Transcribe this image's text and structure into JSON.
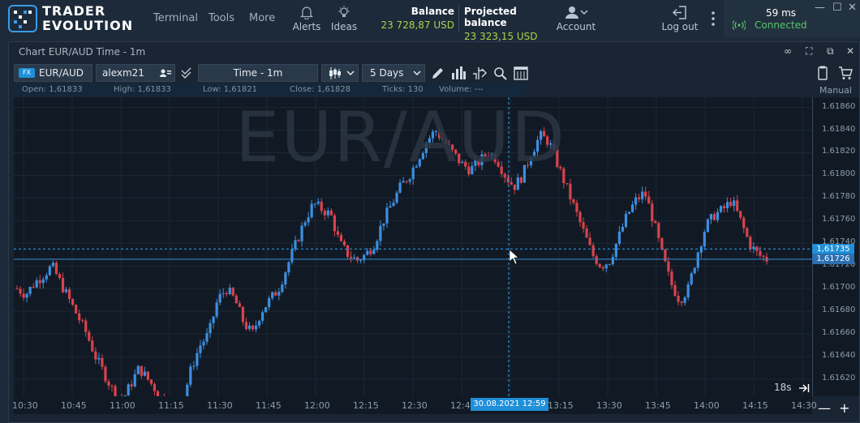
{
  "app": {
    "logo_line1": "TRADER",
    "logo_line2": "EVOLUTION"
  },
  "nav": [
    "Terminal",
    "Tools",
    "More"
  ],
  "toolbar_icons": {
    "alerts_label": "Alerts",
    "ideas_label": "Ideas",
    "account_label": "Account",
    "logout_label": "Log out"
  },
  "balances": {
    "balance_label": "Balance",
    "balance_value": "23 728,87 USD",
    "projected_label": "Projected balance",
    "projected_value": "23 323,15 USD"
  },
  "connection": {
    "ping": "59 ms",
    "status": "Connected"
  },
  "panel": {
    "title": "Chart EUR/AUD Time - 1m",
    "symbol_badge": "FX",
    "symbol": "EUR/AUD",
    "account": "alexm21",
    "time_mode": "Time - 1m",
    "period": "5 Days",
    "manual_label": "Manual"
  },
  "info_bar": {
    "open": "Open:  1,61833",
    "high": "High:  1,61833",
    "low": "Low:  1,61821",
    "close": "Close:  1,61828",
    "ticks": "Ticks:  130",
    "volume": "Volume:  ---"
  },
  "watermark": "EUR/AUD",
  "price_labels": {
    "crosshair_price": "1,61735",
    "current_price": "1,61726",
    "crosshair_time": "30.08.2021 12:59"
  },
  "countdown": "18s",
  "colors": {
    "up": "#3d8ee0",
    "down": "#d8434d",
    "accent": "#1f8fd9",
    "balance": "#a8d34a",
    "connected": "#57c46a"
  },
  "chart_data": {
    "type": "candlestick",
    "y_ticks": [
      "1.61860",
      "1.61840",
      "1.61820",
      "1.61800",
      "1.61780",
      "1.61760",
      "1.61740",
      "1.61720",
      "1.61700",
      "1.61680",
      "1.61660",
      "1.61640",
      "1.61620"
    ],
    "x_ticks": [
      "10:30",
      "10:45",
      "11:00",
      "11:15",
      "11:30",
      "11:45",
      "12:00",
      "12:15",
      "12:30",
      "12:45",
      "13:00",
      "13:15",
      "13:30",
      "13:45",
      "14:00",
      "14:15",
      "14:30"
    ],
    "ylim": [
      1.61605,
      1.61869
    ],
    "close_path": [
      1.617,
      1.61695,
      1.61705,
      1.61712,
      1.6172,
      1.61705,
      1.6169,
      1.61675,
      1.6166,
      1.6164,
      1.61625,
      1.6161,
      1.616,
      1.61615,
      1.6163,
      1.6162,
      1.6161,
      1.61598,
      1.61592,
      1.616,
      1.6163,
      1.6165,
      1.6166,
      1.6169,
      1.617,
      1.6169,
      1.6167,
      1.6166,
      1.6168,
      1.6169,
      1.617,
      1.6172,
      1.6174,
      1.6176,
      1.61775,
      1.6177,
      1.61765,
      1.6174,
      1.6173,
      1.61725,
      1.6173,
      1.6174,
      1.6176,
      1.61775,
      1.6179,
      1.618,
      1.61815,
      1.6183,
      1.6184,
      1.6183,
      1.6182,
      1.6181,
      1.61805,
      1.61812,
      1.6182,
      1.61815,
      1.618,
      1.6179,
      1.618,
      1.6182,
      1.61835,
      1.6183,
      1.6181,
      1.6179,
      1.6177,
      1.6175,
      1.6173,
      1.6172,
      1.61725,
      1.61745,
      1.61765,
      1.61778,
      1.61785,
      1.6176,
      1.6173,
      1.61705,
      1.6169,
      1.617,
      1.6173,
      1.61755,
      1.61765,
      1.6177,
      1.61778,
      1.6176,
      1.6174,
      1.6173,
      1.61726
    ]
  }
}
